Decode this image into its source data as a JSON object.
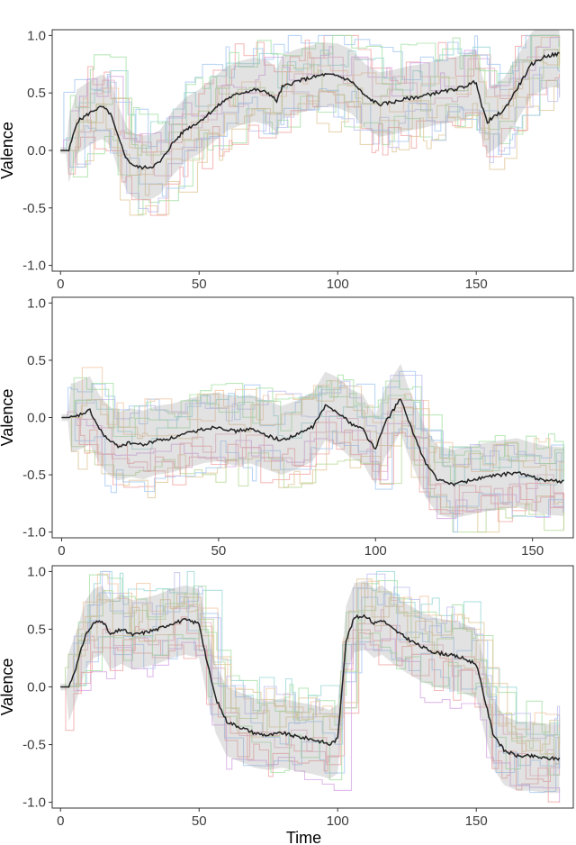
{
  "chart_data": [
    {
      "type": "line",
      "ylabel": "Valence",
      "xlabel": "",
      "xlim": [
        -3,
        185
      ],
      "ylim": [
        -1.05,
        1.05
      ],
      "xticks": [
        0,
        50,
        100,
        150
      ],
      "yticks": [
        -1.0,
        -0.5,
        0.0,
        0.5,
        1.0
      ],
      "x_tick_labels": [
        "0",
        "50",
        "100",
        "150"
      ],
      "y_tick_labels": [
        "-1.0",
        "-0.5",
        "0.0",
        "0.5",
        "1.0"
      ],
      "grid": false,
      "legend": "none",
      "mean_series": {
        "x": [
          0,
          3,
          6,
          9,
          12,
          15,
          18,
          21,
          24,
          27,
          30,
          33,
          36,
          40,
          45,
          50,
          55,
          60,
          65,
          70,
          75,
          78,
          80,
          85,
          90,
          95,
          100,
          105,
          110,
          115,
          120,
          125,
          130,
          135,
          140,
          145,
          150,
          152,
          154,
          157,
          160,
          165,
          170,
          175,
          180
        ],
        "y": [
          0.0,
          0.0,
          0.25,
          0.3,
          0.35,
          0.38,
          0.32,
          0.1,
          -0.08,
          -0.14,
          -0.15,
          -0.14,
          -0.1,
          0.05,
          0.18,
          0.25,
          0.35,
          0.45,
          0.5,
          0.53,
          0.5,
          0.43,
          0.55,
          0.6,
          0.63,
          0.66,
          0.65,
          0.6,
          0.47,
          0.4,
          0.42,
          0.45,
          0.47,
          0.5,
          0.52,
          0.55,
          0.6,
          0.38,
          0.25,
          0.3,
          0.35,
          0.55,
          0.75,
          0.82,
          0.84
        ]
      },
      "band_halfwidth": 0.28
    },
    {
      "type": "line",
      "ylabel": "Valence",
      "xlabel": "",
      "xlim": [
        -3,
        163
      ],
      "ylim": [
        -1.05,
        1.05
      ],
      "xticks": [
        0,
        50,
        100,
        150
      ],
      "yticks": [
        -1.0,
        -0.5,
        0.0,
        0.5,
        1.0
      ],
      "x_tick_labels": [
        "0",
        "50",
        "100",
        "150"
      ],
      "y_tick_labels": [
        "-1.0",
        "-0.5",
        "0.0",
        "0.5",
        "1.0"
      ],
      "grid": false,
      "legend": "none",
      "mean_series": {
        "x": [
          0,
          4,
          8,
          9,
          12,
          15,
          18,
          22,
          26,
          30,
          35,
          40,
          45,
          50,
          55,
          60,
          65,
          70,
          75,
          80,
          84,
          88,
          92,
          96,
          98,
          100,
          103,
          106,
          108,
          110,
          113,
          116,
          120,
          125,
          130,
          135,
          140,
          145,
          150,
          155,
          160
        ],
        "y": [
          0.0,
          0.0,
          0.05,
          0.06,
          -0.1,
          -0.2,
          -0.25,
          -0.22,
          -0.24,
          -0.2,
          -0.18,
          -0.14,
          -0.1,
          -0.08,
          -0.12,
          -0.1,
          -0.15,
          -0.2,
          -0.15,
          -0.08,
          0.1,
          0.05,
          -0.05,
          -0.1,
          -0.2,
          -0.28,
          -0.05,
          0.08,
          0.17,
          0.0,
          -0.2,
          -0.4,
          -0.55,
          -0.58,
          -0.55,
          -0.52,
          -0.5,
          -0.48,
          -0.52,
          -0.55,
          -0.56
        ]
      },
      "band_halfwidth": 0.3
    },
    {
      "type": "line",
      "ylabel": "Valence",
      "xlabel": "Time",
      "xlim": [
        -3,
        185
      ],
      "ylim": [
        -1.05,
        1.05
      ],
      "xticks": [
        0,
        50,
        100,
        150
      ],
      "yticks": [
        -1.0,
        -0.5,
        0.0,
        0.5,
        1.0
      ],
      "x_tick_labels": [
        "0",
        "50",
        "100",
        "150"
      ],
      "y_tick_labels": [
        "-1.0",
        "-0.5",
        "0.0",
        "0.5",
        "1.0"
      ],
      "grid": false,
      "legend": "none",
      "mean_series": {
        "x": [
          0,
          3,
          6,
          9,
          12,
          15,
          18,
          22,
          26,
          30,
          35,
          40,
          45,
          50,
          53,
          56,
          60,
          65,
          70,
          75,
          80,
          85,
          90,
          95,
          97,
          100,
          103,
          106,
          110,
          113,
          116,
          120,
          125,
          130,
          135,
          140,
          145,
          150,
          153,
          156,
          160,
          165,
          170,
          175,
          180
        ],
        "y": [
          0.0,
          0.0,
          0.2,
          0.45,
          0.55,
          0.58,
          0.45,
          0.5,
          0.45,
          0.47,
          0.5,
          0.55,
          0.58,
          0.55,
          0.2,
          -0.1,
          -0.3,
          -0.35,
          -0.4,
          -0.42,
          -0.4,
          -0.43,
          -0.45,
          -0.48,
          -0.5,
          -0.45,
          0.4,
          0.6,
          0.62,
          0.55,
          0.58,
          0.5,
          0.42,
          0.35,
          0.3,
          0.28,
          0.25,
          0.2,
          -0.1,
          -0.4,
          -0.55,
          -0.6,
          -0.6,
          -0.62,
          -0.62
        ]
      },
      "band_halfwidth": 0.3
    }
  ]
}
